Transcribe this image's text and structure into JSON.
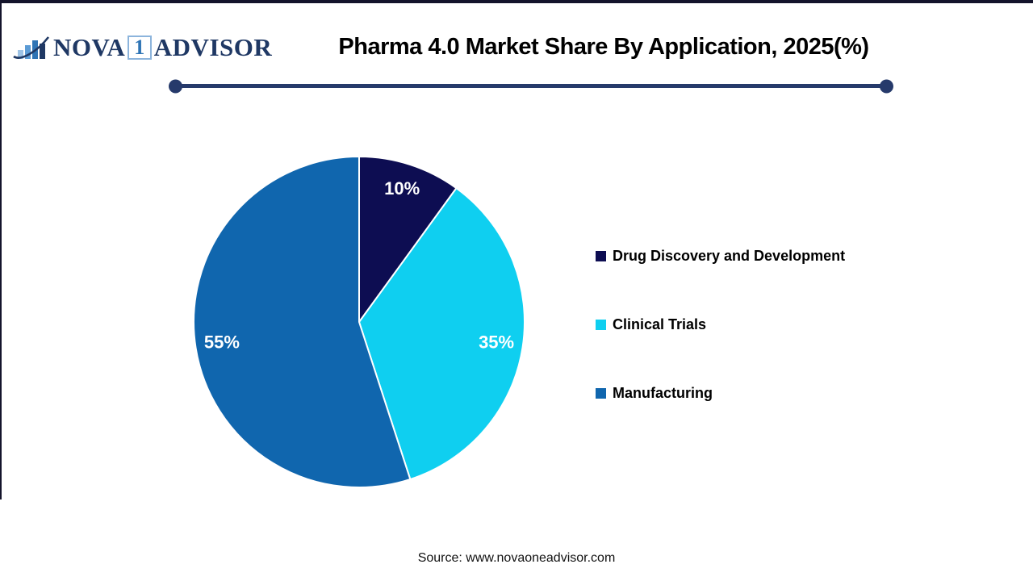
{
  "logo": {
    "nova": "NOVA",
    "one": "1",
    "advisor": "ADVISOR",
    "text_color": "#1f3864",
    "one_color": "#2e74b5",
    "one_box_border": "#8cb4dc",
    "bar_colors": [
      "#9dc3e6",
      "#5b9bd5",
      "#2e74b5",
      "#1f3864"
    ],
    "swoosh_color": "#1f3864"
  },
  "header": {
    "title": "Pharma 4.0 Market Share By Application, 2025(%)",
    "divider_color": "#263a6b"
  },
  "chart_data": {
    "type": "pie",
    "title": "Pharma 4.0 Market Share By Application, 2025(%)",
    "categories": [
      "Drug Discovery and Development",
      "Clinical Trials",
      "Manufacturing"
    ],
    "values": [
      10,
      35,
      55
    ],
    "value_labels": [
      "10%",
      "35%",
      "55%"
    ],
    "colors": [
      "#0d0d52",
      "#0fcff0",
      "#1066ae"
    ],
    "slice_label_color": "#ffffff",
    "slice_separator_color": "#ffffff",
    "start_angle_deg": 0,
    "direction": "clockwise",
    "legend_position": "right",
    "label_radius_ratio": 0.84
  },
  "footer": {
    "source": "Source: www.novaoneadvisor.com"
  }
}
